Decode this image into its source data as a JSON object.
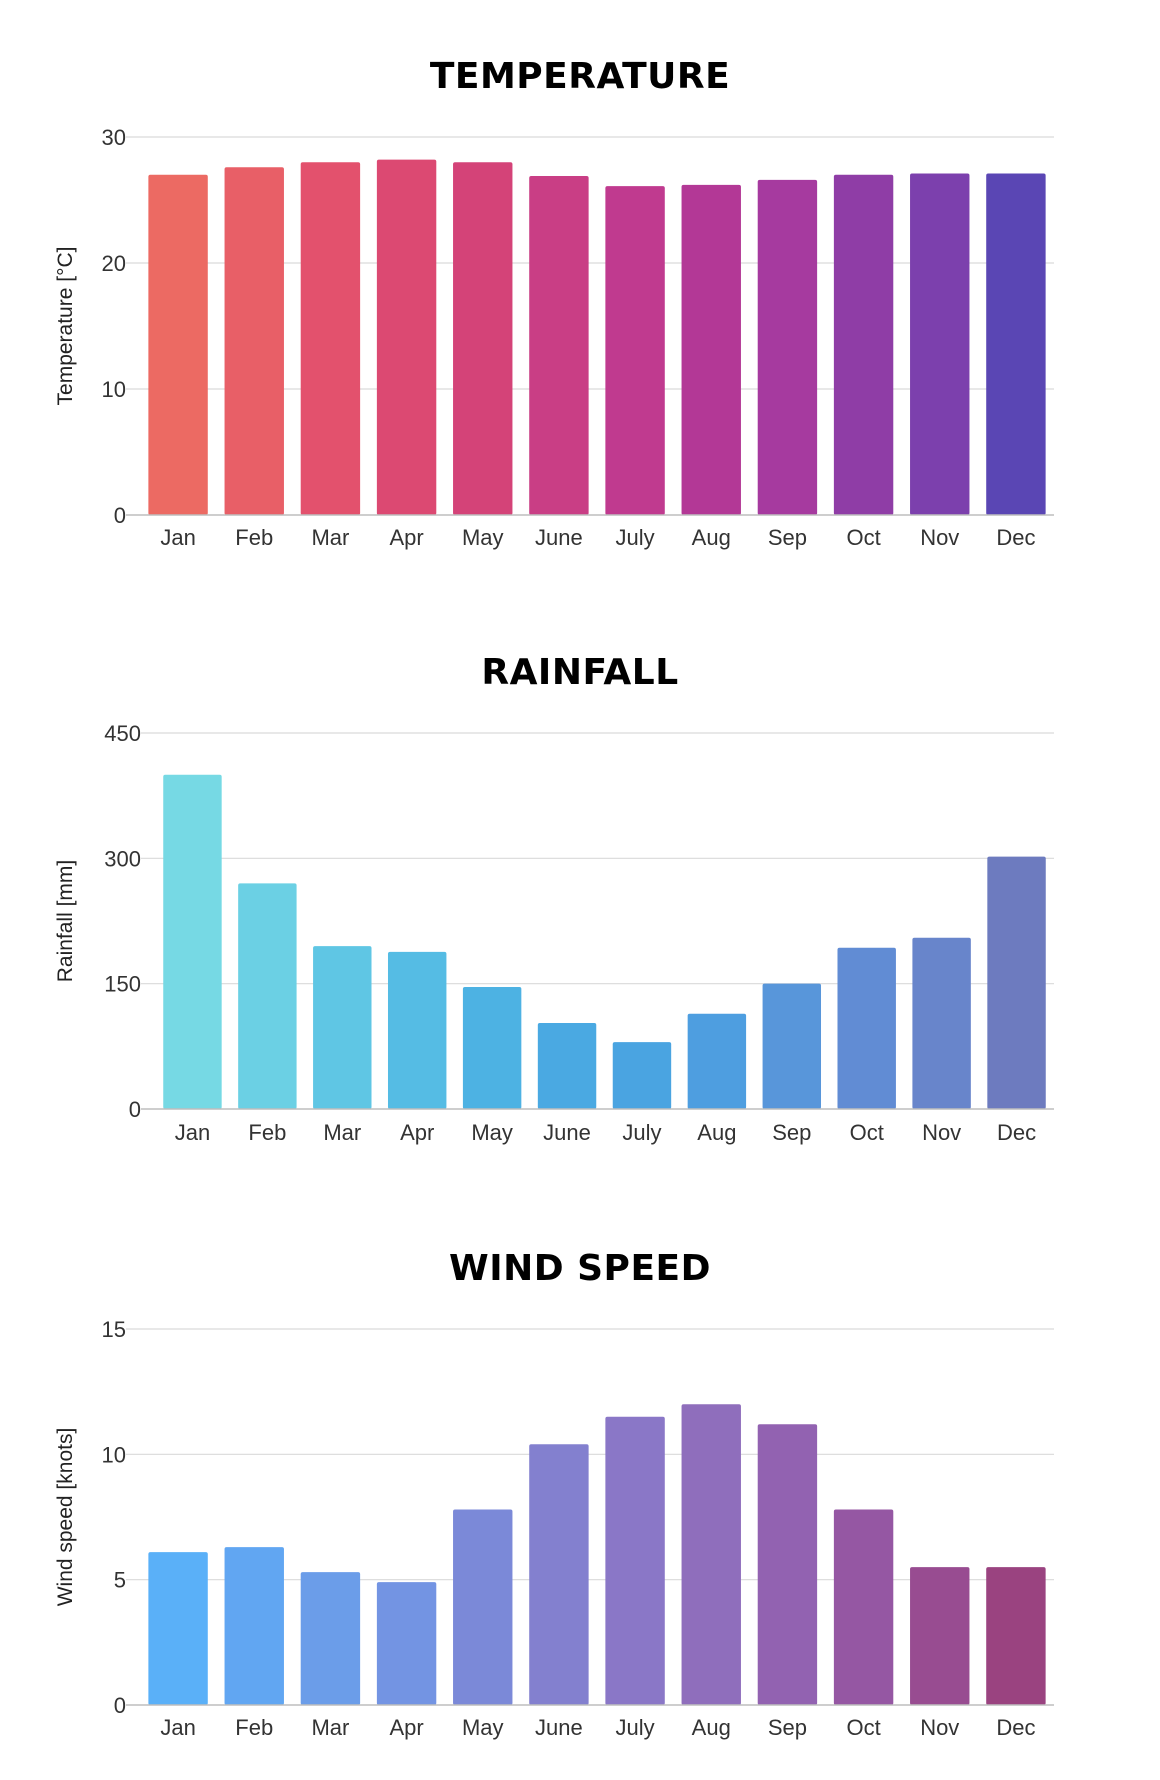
{
  "chart_data": [
    {
      "type": "bar",
      "title": "TEMPERATURE",
      "ylabel": "Temperature [°C]",
      "categories": [
        "Jan",
        "Feb",
        "Mar",
        "Apr",
        "May",
        "June",
        "July",
        "Aug",
        "Sep",
        "Oct",
        "Nov",
        "Dec"
      ],
      "values": [
        27.0,
        27.6,
        28.0,
        28.2,
        28.0,
        26.9,
        26.1,
        26.2,
        26.6,
        27.0,
        27.1,
        27.1
      ],
      "ylim": [
        0,
        30
      ],
      "yticks": [
        0,
        10,
        20,
        30
      ],
      "grid": true,
      "colors": [
        "#ec6a63",
        "#e85f67",
        "#e3516d",
        "#dc4972",
        "#d44378",
        "#c93e85",
        "#c03a8f",
        "#b33896",
        "#a63a9f",
        "#8f3da6",
        "#7c40ad",
        "#5a46b4"
      ]
    },
    {
      "type": "bar",
      "title": "RAINFALL",
      "ylabel": "Rainfall [mm]",
      "categories": [
        "Jan",
        "Feb",
        "Mar",
        "Apr",
        "May",
        "June",
        "July",
        "Aug",
        "Sep",
        "Oct",
        "Nov",
        "Dec"
      ],
      "values": [
        400,
        270,
        195,
        188,
        146,
        103,
        80,
        114,
        150,
        193,
        205,
        302
      ],
      "ylim": [
        0,
        450
      ],
      "yticks": [
        0,
        150,
        300,
        450
      ],
      "grid": true,
      "colors": [
        "#76d9e4",
        "#6bd0e4",
        "#5fc6e4",
        "#55bce4",
        "#4db2e3",
        "#4aa9e2",
        "#4aa4e1",
        "#4e9ee0",
        "#5896da",
        "#618cd4",
        "#6885cb",
        "#6d7bbf"
      ]
    },
    {
      "type": "bar",
      "title": "WIND SPEED",
      "ylabel": "Wind speed [knots]",
      "categories": [
        "Jan",
        "Feb",
        "Mar",
        "Apr",
        "May",
        "June",
        "July",
        "Aug",
        "Sep",
        "Oct",
        "Nov",
        "Dec"
      ],
      "values": [
        6.1,
        6.3,
        5.3,
        4.9,
        7.8,
        10.4,
        11.5,
        12.0,
        11.2,
        7.8,
        5.5,
        5.5
      ],
      "ylim": [
        0,
        15
      ],
      "yticks": [
        0,
        5,
        10,
        15
      ],
      "grid": true,
      "colors": [
        "#5ab0f8",
        "#61a6f2",
        "#6b9de9",
        "#7394e3",
        "#7b89d8",
        "#8380cf",
        "#8a77c7",
        "#8f6ebc",
        "#9262b1",
        "#9557a3",
        "#984c91",
        "#9a4380"
      ]
    }
  ]
}
